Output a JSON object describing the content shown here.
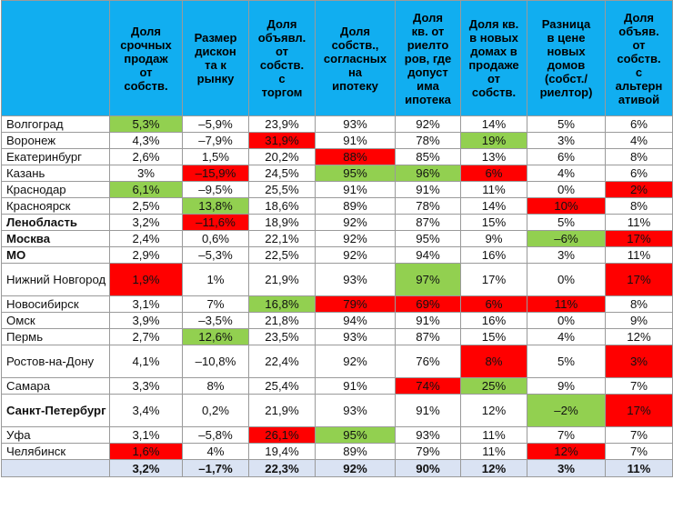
{
  "headers": [
    "",
    "Доля срочных продаж от собств.",
    "Размер дисконта к рынку",
    "Доля объявл. от собств. с торгом",
    "Доля собств., согласных на ипотеку",
    "Доля кв. от риелторов, где допустима ипотека",
    "Доля кв. в новых домах в продаже от собств.",
    "Разница в цене новых домов (собст./риелтор)",
    "Доля объяв. от собств. с альтернативой"
  ],
  "header_lines": [
    [],
    [
      "Доля",
      "срочных",
      "продаж",
      "от",
      "собств."
    ],
    [
      "Размер",
      "дискон",
      "та к",
      "рынку"
    ],
    [
      "Доля",
      "объявл.",
      "от",
      "собств.",
      "с",
      "торгом"
    ],
    [
      "Доля",
      "собств.,",
      "согласных",
      "на",
      "ипотеку"
    ],
    [
      "Доля",
      "кв. от",
      "риелто",
      "ров, где",
      "допуст",
      "има",
      "ипотека"
    ],
    [
      "Доля кв.",
      "в новых",
      "домах в",
      "продаже",
      "от",
      "собств."
    ],
    [
      "Разница",
      "в цене",
      "новых",
      "домов",
      "(собст./",
      "риелтор)"
    ],
    [
      "Доля",
      "объяв.",
      "от",
      "собств.",
      "с",
      "альтерн",
      "ативой"
    ]
  ],
  "rows": [
    {
      "city": "Волгоград",
      "bold": false,
      "tall": false,
      "values": [
        "5,3%",
        "–5,9%",
        "23,9%",
        "93%",
        "92%",
        "14%",
        "5%",
        "6%"
      ],
      "hl": [
        "g",
        "",
        "",
        "",
        "",
        "",
        "",
        ""
      ]
    },
    {
      "city": "Воронеж",
      "bold": false,
      "tall": false,
      "values": [
        "4,3%",
        "–7,9%",
        "31,9%",
        "91%",
        "78%",
        "19%",
        "3%",
        "4%"
      ],
      "hl": [
        "",
        "",
        "r",
        "",
        "",
        "g",
        "",
        ""
      ]
    },
    {
      "city": "Екатеринбург",
      "bold": false,
      "tall": false,
      "values": [
        "2,6%",
        "1,5%",
        "20,2%",
        "88%",
        "85%",
        "13%",
        "6%",
        "8%"
      ],
      "hl": [
        "",
        "",
        "",
        "r",
        "",
        "",
        "",
        ""
      ]
    },
    {
      "city": "Казань",
      "bold": false,
      "tall": false,
      "values": [
        "3%",
        "–15,9%",
        "24,5%",
        "95%",
        "96%",
        "6%",
        "4%",
        "6%"
      ],
      "hl": [
        "",
        "r",
        "",
        "g",
        "g",
        "r",
        "",
        ""
      ]
    },
    {
      "city": "Краснодар",
      "bold": false,
      "tall": false,
      "values": [
        "6,1%",
        "–9,5%",
        "25,5%",
        "91%",
        "91%",
        "11%",
        "0%",
        "2%"
      ],
      "hl": [
        "g",
        "",
        "",
        "",
        "",
        "",
        "",
        "r"
      ]
    },
    {
      "city": "Красноярск",
      "bold": false,
      "tall": false,
      "values": [
        "2,5%",
        "13,8%",
        "18,6%",
        "89%",
        "78%",
        "14%",
        "10%",
        "8%"
      ],
      "hl": [
        "",
        "g",
        "",
        "",
        "",
        "",
        "r",
        ""
      ]
    },
    {
      "city": "Ленобласть",
      "bold": true,
      "tall": false,
      "values": [
        "3,2%",
        "–11,6%",
        "18,9%",
        "92%",
        "87%",
        "15%",
        "5%",
        "11%"
      ],
      "hl": [
        "",
        "r",
        "",
        "",
        "",
        "",
        "",
        ""
      ]
    },
    {
      "city": "Москва",
      "bold": true,
      "tall": false,
      "values": [
        "2,4%",
        "0,6%",
        "22,1%",
        "92%",
        "95%",
        "9%",
        "–6%",
        "17%"
      ],
      "hl": [
        "",
        "",
        "",
        "",
        "",
        "",
        "g",
        "r"
      ]
    },
    {
      "city": "МО",
      "bold": true,
      "tall": false,
      "values": [
        "2,9%",
        "–5,3%",
        "22,5%",
        "92%",
        "94%",
        "16%",
        "3%",
        "11%"
      ],
      "hl": [
        "",
        "",
        "",
        "",
        "",
        "",
        "",
        ""
      ]
    },
    {
      "city": "Нижний Новгород",
      "bold": false,
      "tall": true,
      "values": [
        "1,9%",
        "1%",
        "21,9%",
        "93%",
        "97%",
        "17%",
        "0%",
        "17%"
      ],
      "hl": [
        "r",
        "",
        "",
        "",
        "g",
        "",
        "",
        "r"
      ]
    },
    {
      "city": "Новосибирск",
      "bold": false,
      "tall": false,
      "values": [
        "3,1%",
        "7%",
        "16,8%",
        "79%",
        "69%",
        "6%",
        "11%",
        "8%"
      ],
      "hl": [
        "",
        "",
        "g",
        "r",
        "r",
        "r",
        "r",
        ""
      ]
    },
    {
      "city": "Омск",
      "bold": false,
      "tall": false,
      "values": [
        "3,9%",
        "–3,5%",
        "21,8%",
        "94%",
        "91%",
        "16%",
        "0%",
        "9%"
      ],
      "hl": [
        "",
        "",
        "",
        "",
        "",
        "",
        "",
        ""
      ]
    },
    {
      "city": "Пермь",
      "bold": false,
      "tall": false,
      "values": [
        "2,7%",
        "12,6%",
        "23,5%",
        "93%",
        "87%",
        "15%",
        "4%",
        "12%"
      ],
      "hl": [
        "",
        "g",
        "",
        "",
        "",
        "",
        "",
        ""
      ]
    },
    {
      "city": "Ростов-на-Дону",
      "bold": false,
      "tall": true,
      "values": [
        "4,1%",
        "–10,8%",
        "22,4%",
        "92%",
        "76%",
        "8%",
        "5%",
        "3%"
      ],
      "hl": [
        "",
        "",
        "",
        "",
        "",
        "r",
        "",
        "r"
      ]
    },
    {
      "city": "Самара",
      "bold": false,
      "tall": false,
      "values": [
        "3,3%",
        "8%",
        "25,4%",
        "91%",
        "74%",
        "25%",
        "9%",
        "7%"
      ],
      "hl": [
        "",
        "",
        "",
        "",
        "r",
        "g",
        "",
        ""
      ]
    },
    {
      "city": "Санкт-Петербург",
      "bold": true,
      "tall": true,
      "values": [
        "3,4%",
        "0,2%",
        "21,9%",
        "93%",
        "91%",
        "12%",
        "–2%",
        "17%"
      ],
      "hl": [
        "",
        "",
        "",
        "",
        "",
        "",
        "g",
        "r"
      ]
    },
    {
      "city": "Уфа",
      "bold": false,
      "tall": false,
      "values": [
        "3,1%",
        "–5,8%",
        "26,1%",
        "95%",
        "93%",
        "11%",
        "7%",
        "7%"
      ],
      "hl": [
        "",
        "",
        "r",
        "g",
        "",
        "",
        "",
        ""
      ]
    },
    {
      "city": "Челябинск",
      "bold": false,
      "tall": false,
      "values": [
        "1,6%",
        "4%",
        "19,4%",
        "89%",
        "79%",
        "11%",
        "12%",
        "7%"
      ],
      "hl": [
        "r",
        "",
        "",
        "",
        "",
        "",
        "r",
        ""
      ]
    }
  ],
  "totals": [
    "3,2%",
    "–1,7%",
    "22,3%",
    "92%",
    "90%",
    "12%",
    "3%",
    "11%"
  ],
  "colors": {
    "header_bg": "#11aef0",
    "green": "#92d050",
    "red": "#ff0000",
    "total_bg": "#dae3f3"
  }
}
